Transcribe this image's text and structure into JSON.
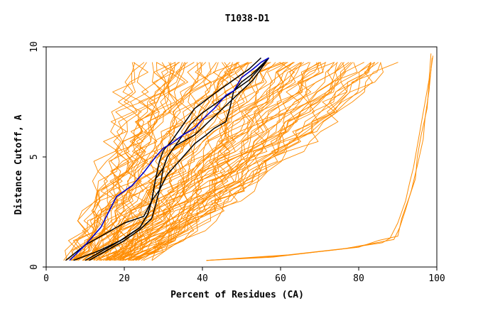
{
  "chart_data": {
    "type": "line",
    "title": "T1038-D1",
    "xlabel": "Percent of Residues (CA)",
    "ylabel": "Distance Cutoff, A",
    "xlim": [
      0,
      100
    ],
    "ylim": [
      0,
      10
    ],
    "x_ticks": [
      0,
      20,
      40,
      60,
      80,
      100
    ],
    "y_ticks": [
      0,
      5,
      10
    ],
    "x_tick_labels": [
      "0",
      "20",
      "40",
      "60",
      "80",
      "100"
    ],
    "y_tick_labels": [
      "0",
      "5",
      "10"
    ],
    "grid": false,
    "legend": "none",
    "colors": {
      "orange": "#ff8c00",
      "black": "#000000",
      "blue": "#0000cc"
    },
    "series": [
      {
        "color": "#000000",
        "x": [
          5.0,
          10,
          15,
          20,
          25,
          27,
          28,
          30,
          31,
          33,
          38,
          41,
          44,
          47,
          50,
          53,
          57
        ],
        "y": [
          0.3,
          1.0,
          1.5,
          2.0,
          2.3,
          3.0,
          4.0,
          4.5,
          5.0,
          5.5,
          6.0,
          6.5,
          7.0,
          7.5,
          8.0,
          8.5,
          9.5
        ]
      },
      {
        "color": "#000000",
        "x": [
          11,
          16,
          20,
          24,
          27,
          28,
          29,
          30,
          31,
          33,
          35,
          37,
          40,
          44,
          48,
          52,
          57
        ],
        "y": [
          0.3,
          0.8,
          1.2,
          1.7,
          2.2,
          2.8,
          3.5,
          4.5,
          5.0,
          5.5,
          6.0,
          6.5,
          7.0,
          7.5,
          8.0,
          8.5,
          9.5
        ]
      },
      {
        "color": "#000000",
        "x": [
          7,
          13,
          19,
          24,
          26,
          27,
          28,
          29,
          30,
          32,
          34,
          36,
          38,
          41,
          44,
          48,
          52,
          55
        ],
        "y": [
          0.3,
          0.7,
          1.2,
          1.8,
          2.4,
          3.0,
          4.0,
          4.8,
          5.3,
          5.7,
          6.2,
          6.7,
          7.2,
          7.6,
          8.0,
          8.5,
          9.0,
          9.5
        ]
      },
      {
        "color": "#000000",
        "x": [
          10,
          15,
          20,
          24,
          26,
          27,
          29,
          31,
          33,
          35,
          38,
          41,
          43,
          46,
          47,
          48,
          50,
          53,
          57
        ],
        "y": [
          0.3,
          0.8,
          1.3,
          1.8,
          2.4,
          3.0,
          3.5,
          4.2,
          4.6,
          5.0,
          5.6,
          6.0,
          6.3,
          6.6,
          7.2,
          8.0,
          8.4,
          8.8,
          9.5
        ]
      },
      {
        "color": "#0000cc",
        "x": [
          6,
          10,
          14,
          16,
          18,
          22,
          25,
          28,
          30,
          32,
          35,
          38,
          40,
          43,
          46,
          48,
          50,
          53,
          55,
          57
        ],
        "y": [
          0.3,
          1.0,
          1.8,
          2.5,
          3.2,
          3.7,
          4.3,
          5.0,
          5.4,
          5.6,
          6.0,
          6.3,
          6.7,
          7.2,
          7.8,
          8.0,
          8.6,
          9.0,
          9.3,
          9.5
        ]
      }
    ]
  }
}
